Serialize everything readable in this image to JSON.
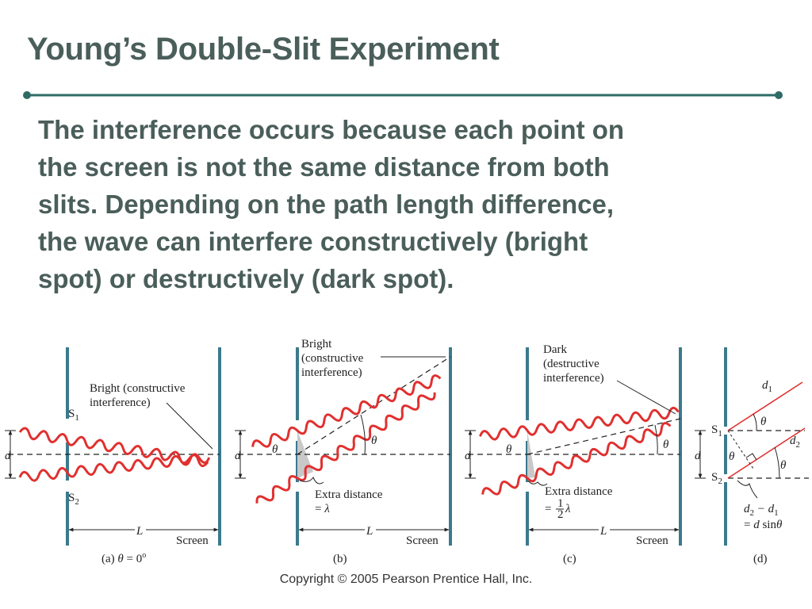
{
  "slide": {
    "title": "Young’s Double-Slit Experiment",
    "body_lines": [
      "The interference occurs because each point on",
      "the screen is not the same distance from both",
      "slits. Depending on the path length difference,",
      "the wave can interfere constructively (bright",
      "spot) or destructively (dark spot)."
    ],
    "copyright": "Copyright © 2005 Pearson Prentice Hall, Inc."
  },
  "colors": {
    "text": "#4a5e5a",
    "rule": "#2f6b66",
    "barrier": "#3b7a8c",
    "wave": "#e0302f",
    "shade": "#c8c8c8"
  },
  "diagram": {
    "panel_a": {
      "caption_prefix": "(a) ",
      "caption_theta": "θ",
      "caption_value": " = 0",
      "caption_deg": "o",
      "bright_line1": "Bright (constructive",
      "bright_line2": "interference)",
      "s1": "S",
      "s1_sub": "1",
      "s2": "S",
      "s2_sub": "2",
      "d": "d",
      "L": "L",
      "screen": "Screen"
    },
    "panel_b": {
      "caption": "(b)",
      "bright_line1": "Bright",
      "bright_line2": "(constructive",
      "bright_line3": "interference)",
      "theta": "θ",
      "d": "d",
      "extra1": "Extra distance",
      "extra2_prefix": "= ",
      "extra2_lambda": "λ",
      "L": "L",
      "screen": "Screen"
    },
    "panel_c": {
      "caption": "(c)",
      "dark_line1": "Dark",
      "dark_line2": "(destructive",
      "dark_line3": "interference)",
      "theta": "θ",
      "d": "d",
      "extra1": "Extra distance",
      "extra2_prefix": "= ",
      "frac_num": "1",
      "frac_den": "2",
      "extra2_lambda": "λ",
      "L": "L",
      "screen": "Screen"
    },
    "panel_d": {
      "caption": "(d)",
      "d1": "d",
      "d1_sub": "1",
      "d2": "d",
      "d2_sub": "2",
      "theta": "θ",
      "s1": "S",
      "s1_sub": "1",
      "s2": "S",
      "s2_sub": "2",
      "d": "d",
      "formula1_a": "d",
      "formula1_a_sub": "2",
      "formula1_mid": " − d",
      "formula1_b_sub": "1",
      "formula2_prefix": "= ",
      "formula2_d": "d",
      "formula2_sin": " sin",
      "formula2_theta": "θ"
    }
  }
}
